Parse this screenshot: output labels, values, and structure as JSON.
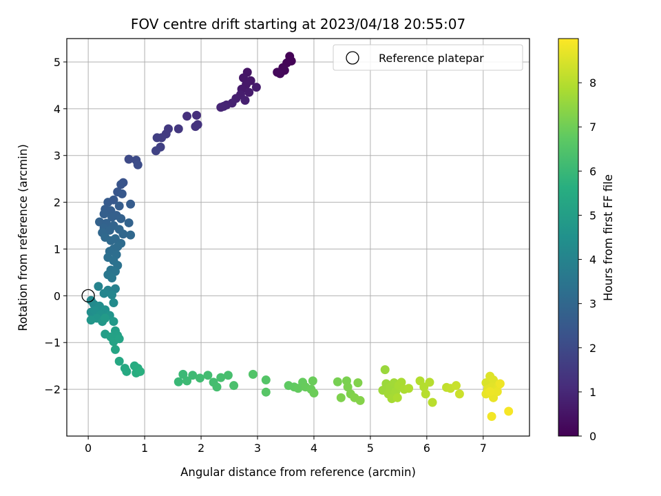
{
  "chart_data": {
    "type": "scatter",
    "title": "FOV centre drift starting at 2023/04/18 20:55:07",
    "xlabel": "Angular distance from reference (arcmin)",
    "ylabel": "Rotation from reference (arcmin)",
    "xlim": [
      -0.38,
      7.82
    ],
    "ylim": [
      -3.0,
      5.5
    ],
    "xticks": [
      0,
      1,
      2,
      3,
      4,
      5,
      6,
      7
    ],
    "yticks": [
      -2,
      -1,
      0,
      1,
      2,
      3,
      4,
      5
    ],
    "xtick_labels": [
      "0",
      "1",
      "2",
      "3",
      "4",
      "5",
      "6",
      "7"
    ],
    "ytick_labels": [
      "−2",
      "−1",
      "0",
      "1",
      "2",
      "3",
      "4",
      "5"
    ],
    "grid": true,
    "legend": {
      "placement": "top-right",
      "entries": [
        "Reference platepar"
      ]
    },
    "reference_point": {
      "name": "Reference platepar",
      "x": 0,
      "y": 0
    },
    "colorbar": {
      "label": "Hours from first FF file",
      "range": [
        0,
        9.0
      ],
      "ticks": [
        0,
        1,
        2,
        3,
        4,
        5,
        6,
        7,
        8
      ],
      "tick_labels": [
        "0",
        "1",
        "2",
        "3",
        "4",
        "5",
        "6",
        "7",
        "8"
      ],
      "colormap": "viridis"
    },
    "points": [
      {
        "x": 3.57,
        "y": 5.12,
        "h": 0.02
      },
      {
        "x": 3.6,
        "y": 5.02,
        "h": 0.05
      },
      {
        "x": 3.52,
        "y": 4.98,
        "h": 0.08
      },
      {
        "x": 3.45,
        "y": 4.88,
        "h": 0.12
      },
      {
        "x": 3.48,
        "y": 4.82,
        "h": 0.15
      },
      {
        "x": 3.4,
        "y": 4.75,
        "h": 0.18
      },
      {
        "x": 3.35,
        "y": 4.78,
        "h": 0.2
      },
      {
        "x": 2.82,
        "y": 4.78,
        "h": 0.5
      },
      {
        "x": 2.75,
        "y": 4.66,
        "h": 0.55
      },
      {
        "x": 2.88,
        "y": 4.6,
        "h": 0.58
      },
      {
        "x": 2.8,
        "y": 4.52,
        "h": 0.62
      },
      {
        "x": 2.72,
        "y": 4.42,
        "h": 0.65
      },
      {
        "x": 2.85,
        "y": 4.35,
        "h": 0.68
      },
      {
        "x": 2.98,
        "y": 4.46,
        "h": 0.7
      },
      {
        "x": 2.7,
        "y": 4.3,
        "h": 0.74
      },
      {
        "x": 2.62,
        "y": 4.22,
        "h": 0.78
      },
      {
        "x": 2.78,
        "y": 4.18,
        "h": 0.8
      },
      {
        "x": 2.55,
        "y": 4.12,
        "h": 0.84
      },
      {
        "x": 2.45,
        "y": 4.08,
        "h": 0.88
      },
      {
        "x": 2.4,
        "y": 4.05,
        "h": 0.92
      },
      {
        "x": 2.35,
        "y": 4.03,
        "h": 0.95
      },
      {
        "x": 1.92,
        "y": 3.86,
        "h": 1.2
      },
      {
        "x": 1.75,
        "y": 3.84,
        "h": 1.25
      },
      {
        "x": 1.94,
        "y": 3.66,
        "h": 1.3
      },
      {
        "x": 1.9,
        "y": 3.62,
        "h": 1.35
      },
      {
        "x": 1.6,
        "y": 3.57,
        "h": 1.45
      },
      {
        "x": 1.42,
        "y": 3.57,
        "h": 1.5
      },
      {
        "x": 1.38,
        "y": 3.46,
        "h": 1.55
      },
      {
        "x": 1.3,
        "y": 3.38,
        "h": 1.6
      },
      {
        "x": 1.22,
        "y": 3.38,
        "h": 1.65
      },
      {
        "x": 1.28,
        "y": 3.18,
        "h": 1.7
      },
      {
        "x": 1.2,
        "y": 3.1,
        "h": 1.75
      },
      {
        "x": 0.72,
        "y": 2.92,
        "h": 2.0
      },
      {
        "x": 0.85,
        "y": 2.9,
        "h": 2.05
      },
      {
        "x": 0.88,
        "y": 2.8,
        "h": 2.1
      },
      {
        "x": 0.62,
        "y": 2.42,
        "h": 2.3
      },
      {
        "x": 0.58,
        "y": 2.38,
        "h": 2.35
      },
      {
        "x": 0.52,
        "y": 2.22,
        "h": 2.4
      },
      {
        "x": 0.6,
        "y": 2.18,
        "h": 2.45
      },
      {
        "x": 0.35,
        "y": 2.0,
        "h": 2.55
      },
      {
        "x": 0.45,
        "y": 2.05,
        "h": 2.5
      },
      {
        "x": 0.75,
        "y": 1.96,
        "h": 2.6
      },
      {
        "x": 0.55,
        "y": 1.92,
        "h": 2.62
      },
      {
        "x": 0.3,
        "y": 1.85,
        "h": 2.65
      },
      {
        "x": 0.4,
        "y": 1.82,
        "h": 2.68
      },
      {
        "x": 0.28,
        "y": 1.75,
        "h": 2.7
      },
      {
        "x": 0.5,
        "y": 1.72,
        "h": 2.72
      },
      {
        "x": 0.42,
        "y": 1.68,
        "h": 2.75
      },
      {
        "x": 0.58,
        "y": 1.65,
        "h": 2.78
      },
      {
        "x": 0.2,
        "y": 1.58,
        "h": 2.8
      },
      {
        "x": 0.32,
        "y": 1.55,
        "h": 2.82
      },
      {
        "x": 0.72,
        "y": 1.56,
        "h": 2.85
      },
      {
        "x": 0.45,
        "y": 1.5,
        "h": 2.88
      },
      {
        "x": 0.28,
        "y": 1.45,
        "h": 2.9
      },
      {
        "x": 0.38,
        "y": 1.4,
        "h": 2.92
      },
      {
        "x": 0.55,
        "y": 1.42,
        "h": 2.95
      },
      {
        "x": 0.25,
        "y": 1.35,
        "h": 2.98
      },
      {
        "x": 0.62,
        "y": 1.32,
        "h": 3.0
      },
      {
        "x": 0.75,
        "y": 1.3,
        "h": 3.02
      },
      {
        "x": 0.3,
        "y": 1.25,
        "h": 3.05
      },
      {
        "x": 0.48,
        "y": 1.22,
        "h": 3.08
      },
      {
        "x": 0.4,
        "y": 1.18,
        "h": 3.1
      },
      {
        "x": 0.58,
        "y": 1.12,
        "h": 3.12
      },
      {
        "x": 0.52,
        "y": 1.05,
        "h": 3.15
      },
      {
        "x": 0.45,
        "y": 1.0,
        "h": 3.18
      },
      {
        "x": 0.38,
        "y": 0.95,
        "h": 3.2
      },
      {
        "x": 0.5,
        "y": 0.88,
        "h": 3.25
      },
      {
        "x": 0.35,
        "y": 0.82,
        "h": 3.28
      },
      {
        "x": 0.45,
        "y": 0.75,
        "h": 3.32
      },
      {
        "x": 0.52,
        "y": 0.65,
        "h": 3.38
      },
      {
        "x": 0.4,
        "y": 0.55,
        "h": 3.45
      },
      {
        "x": 0.48,
        "y": 0.52,
        "h": 3.5
      },
      {
        "x": 0.35,
        "y": 0.45,
        "h": 3.55
      },
      {
        "x": 0.42,
        "y": 0.38,
        "h": 3.6
      },
      {
        "x": 0.48,
        "y": 0.15,
        "h": 3.9
      },
      {
        "x": 0.35,
        "y": 0.12,
        "h": 3.95
      },
      {
        "x": 0.18,
        "y": 0.2,
        "h": 4.0
      },
      {
        "x": 0.28,
        "y": 0.05,
        "h": 4.05
      },
      {
        "x": 0.42,
        "y": 0.02,
        "h": 4.1
      },
      {
        "x": 0.05,
        "y": -0.1,
        "h": 4.2
      },
      {
        "x": 0.1,
        "y": -0.18,
        "h": 4.25
      },
      {
        "x": 0.45,
        "y": -0.15,
        "h": 4.3
      },
      {
        "x": 0.2,
        "y": -0.22,
        "h": 4.35
      },
      {
        "x": 0.05,
        "y": -0.35,
        "h": 4.4
      },
      {
        "x": 0.12,
        "y": -0.32,
        "h": 4.45
      },
      {
        "x": 0.3,
        "y": -0.3,
        "h": 4.5
      },
      {
        "x": 0.22,
        "y": -0.4,
        "h": 4.55
      },
      {
        "x": 0.38,
        "y": -0.42,
        "h": 4.6
      },
      {
        "x": 0.15,
        "y": -0.48,
        "h": 4.65
      },
      {
        "x": 0.05,
        "y": -0.52,
        "h": 4.7
      },
      {
        "x": 0.25,
        "y": -0.55,
        "h": 4.75
      },
      {
        "x": 0.45,
        "y": -0.55,
        "h": 4.8
      },
      {
        "x": 0.3,
        "y": -0.48,
        "h": 4.85
      },
      {
        "x": 0.3,
        "y": -0.82,
        "h": 5.0
      },
      {
        "x": 0.48,
        "y": -0.75,
        "h": 5.05
      },
      {
        "x": 0.52,
        "y": -0.85,
        "h": 5.1
      },
      {
        "x": 0.4,
        "y": -0.88,
        "h": 5.12
      },
      {
        "x": 0.45,
        "y": -0.98,
        "h": 5.15
      },
      {
        "x": 0.55,
        "y": -0.92,
        "h": 5.18
      },
      {
        "x": 0.48,
        "y": -1.15,
        "h": 5.22
      },
      {
        "x": 0.55,
        "y": -1.4,
        "h": 5.35
      },
      {
        "x": 0.65,
        "y": -1.55,
        "h": 5.4
      },
      {
        "x": 0.68,
        "y": -1.62,
        "h": 5.45
      },
      {
        "x": 0.82,
        "y": -1.5,
        "h": 5.5
      },
      {
        "x": 0.88,
        "y": -1.55,
        "h": 5.55
      },
      {
        "x": 0.85,
        "y": -1.65,
        "h": 5.6
      },
      {
        "x": 0.92,
        "y": -1.62,
        "h": 5.65
      },
      {
        "x": 1.6,
        "y": -1.84,
        "h": 6.0
      },
      {
        "x": 1.68,
        "y": -1.68,
        "h": 6.05
      },
      {
        "x": 1.75,
        "y": -1.82,
        "h": 6.08
      },
      {
        "x": 1.85,
        "y": -1.7,
        "h": 6.1
      },
      {
        "x": 1.98,
        "y": -1.76,
        "h": 6.15
      },
      {
        "x": 2.12,
        "y": -1.7,
        "h": 6.2
      },
      {
        "x": 2.22,
        "y": -1.85,
        "h": 6.22
      },
      {
        "x": 2.28,
        "y": -1.95,
        "h": 6.25
      },
      {
        "x": 2.35,
        "y": -1.75,
        "h": 6.28
      },
      {
        "x": 2.48,
        "y": -1.7,
        "h": 6.3
      },
      {
        "x": 2.58,
        "y": -1.92,
        "h": 6.35
      },
      {
        "x": 2.92,
        "y": -1.68,
        "h": 6.5
      },
      {
        "x": 3.15,
        "y": -1.8,
        "h": 6.55
      },
      {
        "x": 3.15,
        "y": -2.06,
        "h": 6.6
      },
      {
        "x": 3.55,
        "y": -1.92,
        "h": 6.75
      },
      {
        "x": 3.65,
        "y": -1.95,
        "h": 6.78
      },
      {
        "x": 3.72,
        "y": -1.98,
        "h": 6.82
      },
      {
        "x": 3.8,
        "y": -1.85,
        "h": 6.85
      },
      {
        "x": 3.85,
        "y": -1.95,
        "h": 6.88
      },
      {
        "x": 3.95,
        "y": -2.0,
        "h": 6.9
      },
      {
        "x": 3.98,
        "y": -1.82,
        "h": 6.92
      },
      {
        "x": 4.0,
        "y": -2.08,
        "h": 6.95
      },
      {
        "x": 4.42,
        "y": -1.84,
        "h": 7.1
      },
      {
        "x": 4.58,
        "y": -1.82,
        "h": 7.15
      },
      {
        "x": 4.6,
        "y": -1.95,
        "h": 7.18
      },
      {
        "x": 4.48,
        "y": -2.18,
        "h": 7.2
      },
      {
        "x": 4.65,
        "y": -2.1,
        "h": 7.22
      },
      {
        "x": 4.78,
        "y": -1.86,
        "h": 7.25
      },
      {
        "x": 4.72,
        "y": -2.18,
        "h": 7.28
      },
      {
        "x": 4.82,
        "y": -2.24,
        "h": 7.3
      },
      {
        "x": 5.26,
        "y": -1.58,
        "h": 7.6
      },
      {
        "x": 5.28,
        "y": -1.88,
        "h": 7.62
      },
      {
        "x": 5.22,
        "y": -2.02,
        "h": 7.65
      },
      {
        "x": 5.35,
        "y": -1.95,
        "h": 7.68
      },
      {
        "x": 5.42,
        "y": -1.86,
        "h": 7.7
      },
      {
        "x": 5.32,
        "y": -2.1,
        "h": 7.72
      },
      {
        "x": 5.45,
        "y": -2.05,
        "h": 7.75
      },
      {
        "x": 5.38,
        "y": -2.2,
        "h": 7.78
      },
      {
        "x": 5.5,
        "y": -1.92,
        "h": 7.8
      },
      {
        "x": 5.55,
        "y": -1.85,
        "h": 7.82
      },
      {
        "x": 5.6,
        "y": -2.0,
        "h": 7.85
      },
      {
        "x": 5.48,
        "y": -2.18,
        "h": 7.88
      },
      {
        "x": 5.68,
        "y": -1.98,
        "h": 7.9
      },
      {
        "x": 5.88,
        "y": -1.82,
        "h": 7.95
      },
      {
        "x": 5.95,
        "y": -1.95,
        "h": 7.98
      },
      {
        "x": 6.05,
        "y": -1.85,
        "h": 8.0
      },
      {
        "x": 5.98,
        "y": -2.1,
        "h": 8.02
      },
      {
        "x": 6.1,
        "y": -2.28,
        "h": 8.05
      },
      {
        "x": 6.35,
        "y": -1.96,
        "h": 8.15
      },
      {
        "x": 6.42,
        "y": -1.98,
        "h": 8.2
      },
      {
        "x": 6.52,
        "y": -1.92,
        "h": 8.25
      },
      {
        "x": 6.58,
        "y": -2.1,
        "h": 8.3
      },
      {
        "x": 7.05,
        "y": -1.86,
        "h": 8.5
      },
      {
        "x": 7.12,
        "y": -1.72,
        "h": 8.55
      },
      {
        "x": 7.18,
        "y": -1.8,
        "h": 8.58
      },
      {
        "x": 7.08,
        "y": -2.0,
        "h": 8.6
      },
      {
        "x": 7.15,
        "y": -1.95,
        "h": 8.62
      },
      {
        "x": 7.22,
        "y": -2.02,
        "h": 8.65
      },
      {
        "x": 7.28,
        "y": -1.9,
        "h": 8.68
      },
      {
        "x": 7.05,
        "y": -2.1,
        "h": 8.7
      },
      {
        "x": 7.18,
        "y": -2.18,
        "h": 8.72
      },
      {
        "x": 7.25,
        "y": -2.05,
        "h": 8.75
      },
      {
        "x": 7.12,
        "y": -2.05,
        "h": 8.78
      },
      {
        "x": 7.3,
        "y": -1.88,
        "h": 8.8
      },
      {
        "x": 7.15,
        "y": -2.58,
        "h": 8.85
      },
      {
        "x": 7.45,
        "y": -2.47,
        "h": 8.9
      }
    ]
  }
}
